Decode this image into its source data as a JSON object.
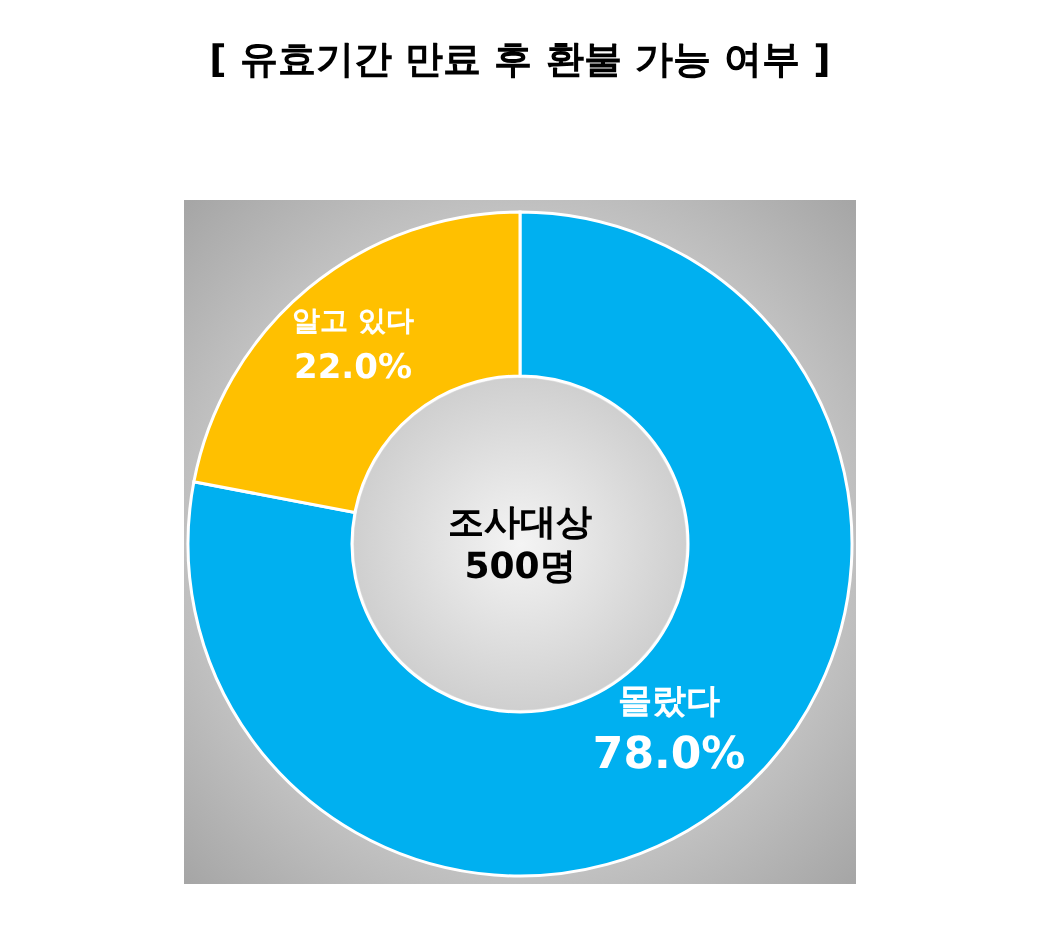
{
  "chart_data": {
    "type": "donut",
    "title": "[ 유효기간 만료 후 환불 가능 여부 ]",
    "categories": [
      "몰랐다",
      "알고 있다"
    ],
    "values": [
      78.0,
      22.0
    ],
    "colors": [
      "#00b0f0",
      "#ffc000"
    ],
    "value_labels": [
      "78.0%",
      "22.0%"
    ],
    "annotations": [
      "조사대상\n500명"
    ],
    "legend": false
  }
}
